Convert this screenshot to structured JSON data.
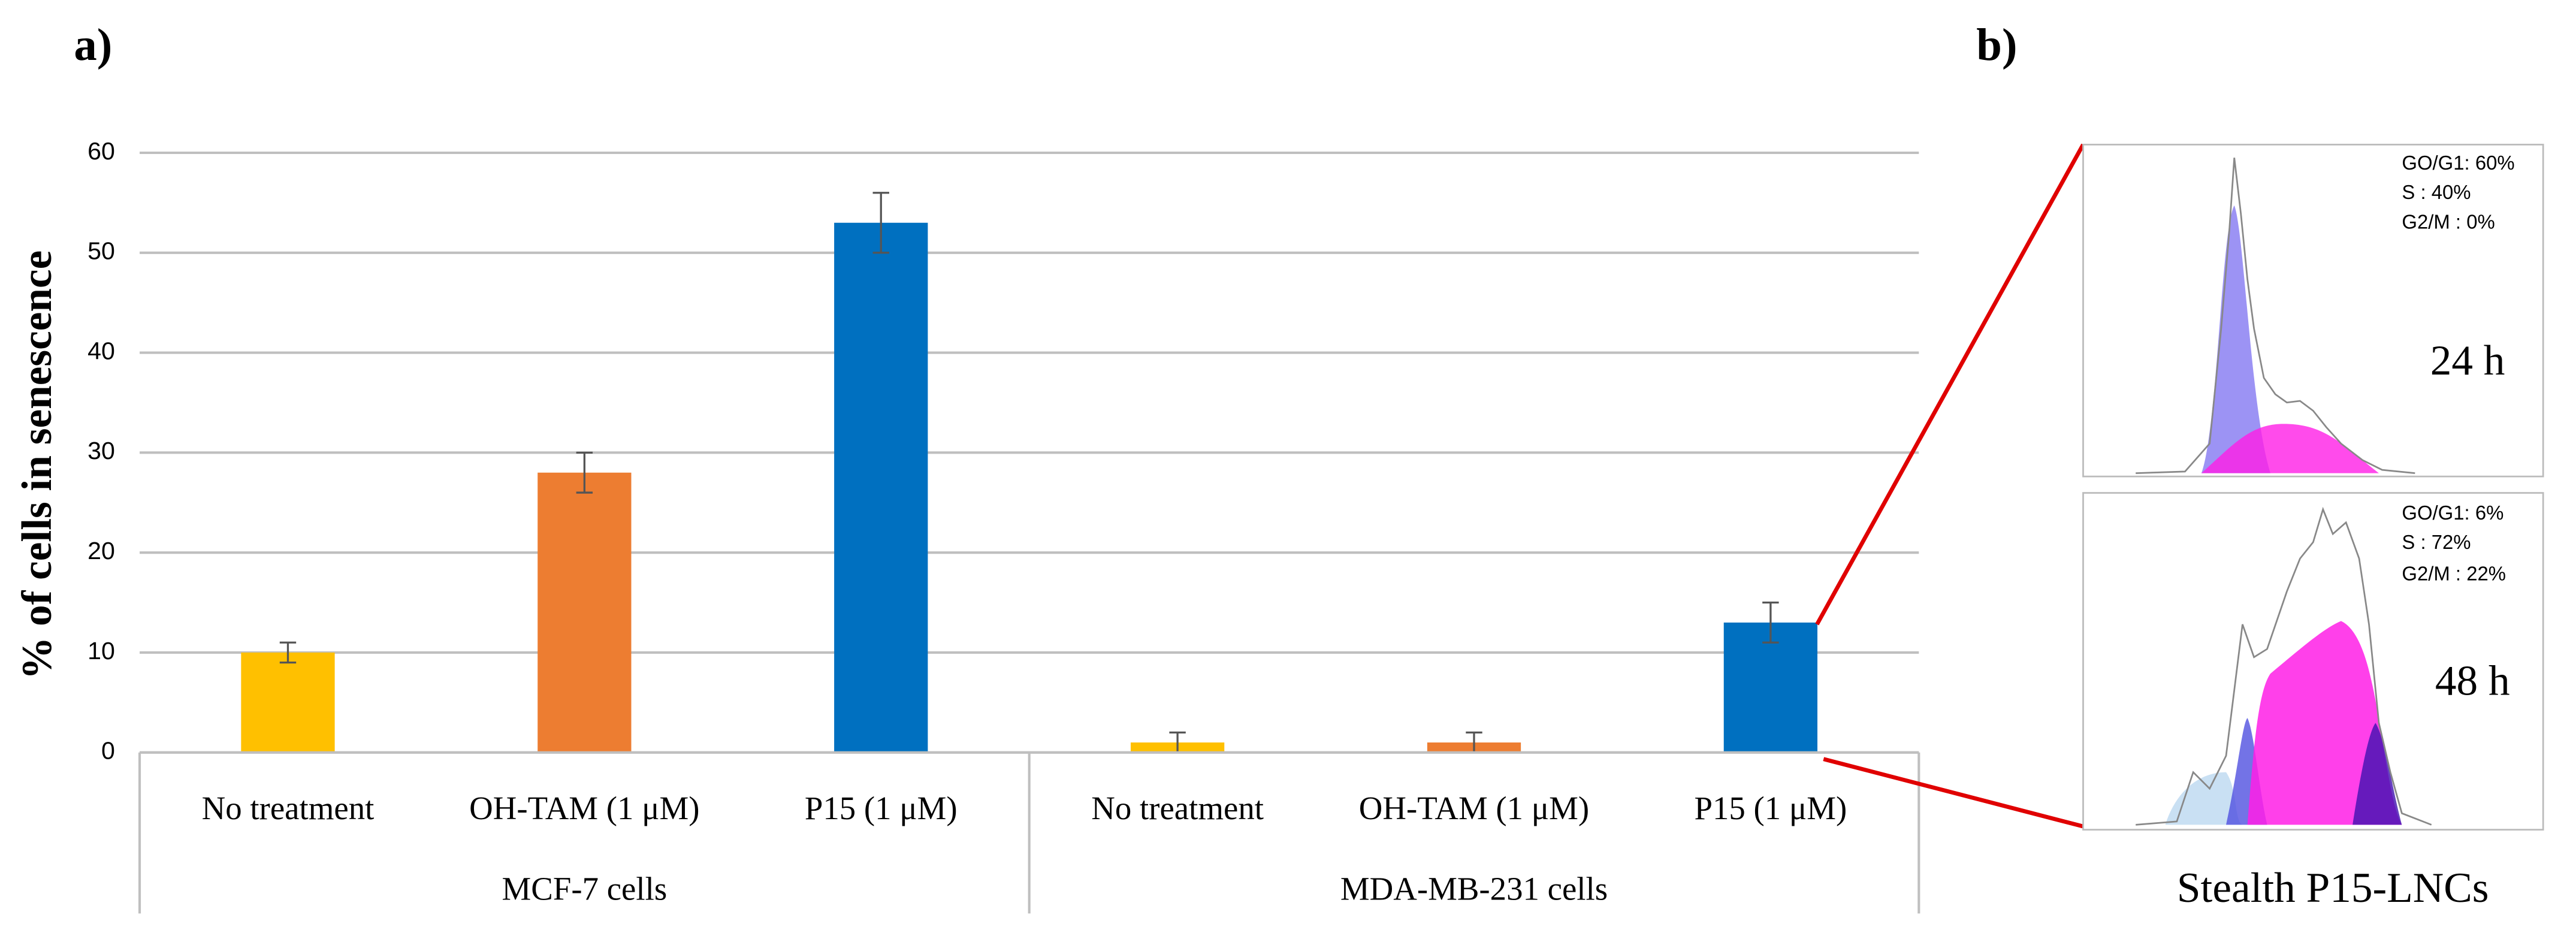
{
  "chart_data": {
    "type": "bar",
    "panel_label": "a)",
    "y_label": "% of cells in senescence",
    "categories": [
      "No treatment",
      "OH-TAM (1 μM)",
      "P15 (1 μM)",
      "No treatment",
      "OH-TAM (1 μM)",
      "P15 (1 μM)"
    ],
    "groups": [
      "MCF-7 cells",
      "MDA-MB-231 cells"
    ],
    "values": [
      10,
      28,
      53,
      1,
      1,
      13
    ],
    "errors": [
      1,
      2,
      3,
      1,
      1,
      2
    ],
    "colors": [
      "#ffc000",
      "#ed7d31",
      "#0070c0",
      "#ffc000",
      "#ed7d31",
      "#0070c0"
    ],
    "ylim": [
      0,
      60
    ],
    "yticks": [
      0,
      10,
      20,
      30,
      40,
      50,
      60
    ],
    "grid": true
  },
  "panel_b": {
    "label": "b)",
    "caption": "Stealth P15-LNCs",
    "plots": [
      {
        "time": "24 h",
        "stats": [
          "GO/G1: 60%",
          "S : 40%",
          "G2/M : 0%"
        ]
      },
      {
        "time": "48 h",
        "stats": [
          "GO/G1: 6%",
          "S : 72%",
          "G2/M : 22%"
        ]
      }
    ]
  }
}
